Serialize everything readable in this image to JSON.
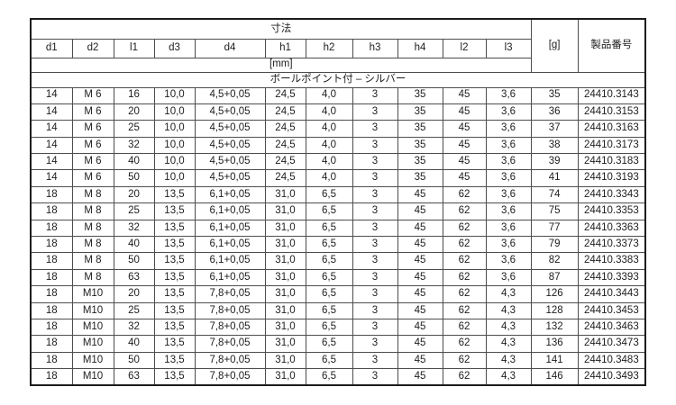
{
  "table": {
    "dims_group_label": "寸法",
    "unit_label": "[mm]",
    "weight_label": "[g]",
    "product_label": "製品番号",
    "section_label": "ボールポイント付 – シルバー",
    "columns": [
      "d1",
      "d2",
      "l1",
      "d3",
      "d4",
      "h1",
      "h2",
      "h3",
      "h4",
      "l2",
      "l3"
    ],
    "rows": [
      [
        "14",
        "M 6",
        "16",
        "10,0",
        "4,5+0,05",
        "24,5",
        "4,0",
        "3",
        "35",
        "45",
        "3,6",
        "35",
        "24410.3143"
      ],
      [
        "14",
        "M 6",
        "20",
        "10,0",
        "4,5+0,05",
        "24,5",
        "4,0",
        "3",
        "35",
        "45",
        "3,6",
        "36",
        "24410.3153"
      ],
      [
        "14",
        "M 6",
        "25",
        "10,0",
        "4,5+0,05",
        "24,5",
        "4,0",
        "3",
        "35",
        "45",
        "3,6",
        "37",
        "24410.3163"
      ],
      [
        "14",
        "M 6",
        "32",
        "10,0",
        "4,5+0,05",
        "24,5",
        "4,0",
        "3",
        "35",
        "45",
        "3,6",
        "38",
        "24410.3173"
      ],
      [
        "14",
        "M 6",
        "40",
        "10,0",
        "4,5+0,05",
        "24,5",
        "4,0",
        "3",
        "35",
        "45",
        "3,6",
        "39",
        "24410.3183"
      ],
      [
        "14",
        "M 6",
        "50",
        "10,0",
        "4,5+0,05",
        "24,5",
        "4,0",
        "3",
        "35",
        "45",
        "3,6",
        "41",
        "24410.3193"
      ],
      [
        "18",
        "M 8",
        "20",
        "13,5",
        "6,1+0,05",
        "31,0",
        "6,5",
        "3",
        "45",
        "62",
        "3,6",
        "74",
        "24410.3343"
      ],
      [
        "18",
        "M 8",
        "25",
        "13,5",
        "6,1+0,05",
        "31,0",
        "6,5",
        "3",
        "45",
        "62",
        "3,6",
        "75",
        "24410.3353"
      ],
      [
        "18",
        "M 8",
        "32",
        "13,5",
        "6,1+0,05",
        "31,0",
        "6,5",
        "3",
        "45",
        "62",
        "3,6",
        "77",
        "24410.3363"
      ],
      [
        "18",
        "M 8",
        "40",
        "13,5",
        "6,1+0,05",
        "31,0",
        "6,5",
        "3",
        "45",
        "62",
        "3,6",
        "79",
        "24410.3373"
      ],
      [
        "18",
        "M 8",
        "50",
        "13,5",
        "6,1+0,05",
        "31,0",
        "6,5",
        "3",
        "45",
        "62",
        "3,6",
        "82",
        "24410.3383"
      ],
      [
        "18",
        "M 8",
        "63",
        "13,5",
        "6,1+0,05",
        "31,0",
        "6,5",
        "3",
        "45",
        "62",
        "3,6",
        "87",
        "24410.3393"
      ],
      [
        "18",
        "M10",
        "20",
        "13,5",
        "7,8+0,05",
        "31,0",
        "6,5",
        "3",
        "45",
        "62",
        "4,3",
        "126",
        "24410.3443"
      ],
      [
        "18",
        "M10",
        "25",
        "13,5",
        "7,8+0,05",
        "31,0",
        "6,5",
        "3",
        "45",
        "62",
        "4,3",
        "128",
        "24410.3453"
      ],
      [
        "18",
        "M10",
        "32",
        "13,5",
        "7,8+0,05",
        "31,0",
        "6,5",
        "3",
        "45",
        "62",
        "4,3",
        "132",
        "24410.3463"
      ],
      [
        "18",
        "M10",
        "40",
        "13,5",
        "7,8+0,05",
        "31,0",
        "6,5",
        "3",
        "45",
        "62",
        "4,3",
        "136",
        "24410.3473"
      ],
      [
        "18",
        "M10",
        "50",
        "13,5",
        "7,8+0,05",
        "31,0",
        "6,5",
        "3",
        "45",
        "62",
        "4,3",
        "141",
        "24410.3483"
      ],
      [
        "18",
        "M10",
        "63",
        "13,5",
        "7,8+0,05",
        "31,0",
        "6,5",
        "3",
        "45",
        "62",
        "4,3",
        "146",
        "24410.3493"
      ]
    ]
  }
}
